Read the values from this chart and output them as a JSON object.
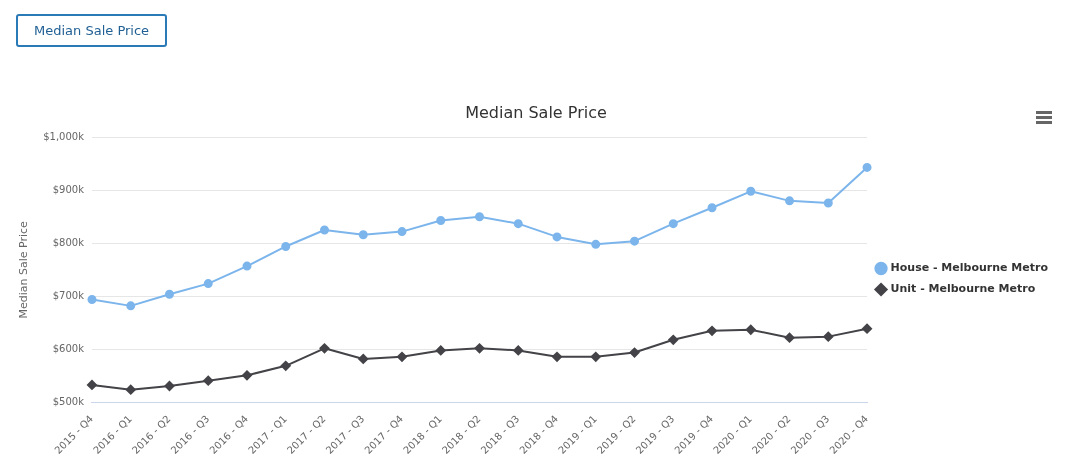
{
  "chart_data": {
    "type": "line",
    "title": "Median Sale Price",
    "ylabel": "Median Sale Price",
    "annotations": [
      "Median Sale Price"
    ],
    "categories": [
      "2015 - Q4",
      "2016 - Q1",
      "2016 - Q2",
      "2016 - Q3",
      "2016 - Q4",
      "2017 - Q1",
      "2017 - Q2",
      "2017 - Q3",
      "2017 - Q4",
      "2018 - Q1",
      "2018 - Q2",
      "2018 - Q3",
      "2018 - Q4",
      "2019 - Q1",
      "2019 - Q2",
      "2019 - Q3",
      "2019 - Q4",
      "2020 - Q1",
      "2020 - Q2",
      "2020 - Q3",
      "2020 - Q4"
    ],
    "series": [
      {
        "name": "House - Melbourne Metro",
        "color": "#7cb5ec",
        "marker": "circle",
        "values": [
          694,
          682,
          704,
          724,
          757,
          794,
          825,
          816,
          822,
          843,
          850,
          837,
          812,
          798,
          804,
          837,
          867,
          898,
          880,
          876,
          943
        ]
      },
      {
        "name": "Unit - Melbourne Metro",
        "color": "#434348",
        "marker": "diamond",
        "values": [
          533,
          524,
          531,
          541,
          551,
          569,
          602,
          582,
          586,
          598,
          602,
          598,
          586,
          586,
          594,
          618,
          635,
          637,
          622,
          624,
          639
        ]
      }
    ],
    "ylim": [
      500,
      1000
    ],
    "yticks": [
      {
        "value": 500,
        "label": "$500k"
      },
      {
        "value": 600,
        "label": "$600k"
      },
      {
        "value": 700,
        "label": "$700k"
      },
      {
        "value": 800,
        "label": "$800k"
      },
      {
        "value": 900,
        "label": "$900k"
      },
      {
        "value": 1000,
        "label": "$1,000k"
      }
    ],
    "grid": "y",
    "legend": "right"
  }
}
